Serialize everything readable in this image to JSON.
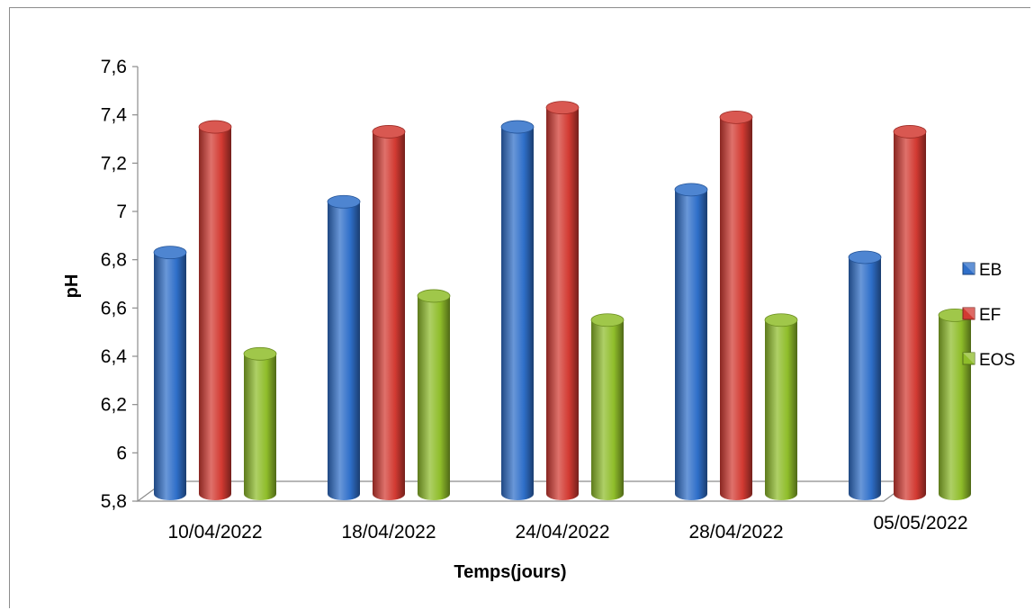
{
  "chart_data": {
    "type": "bar",
    "categories": [
      "10/04/2022",
      "18/04/2022",
      "24/04/2022",
      "28/04/2022",
      "05/05/2022"
    ],
    "series": [
      {
        "name": "EB",
        "color": "#2f6fc9",
        "values": [
          6.83,
          7.04,
          7.35,
          7.09,
          6.81
        ]
      },
      {
        "name": "EF",
        "color": "#d23a32",
        "values": [
          7.35,
          7.33,
          7.43,
          7.39,
          7.33
        ]
      },
      {
        "name": "EOS",
        "color": "#8fbd2a",
        "values": [
          6.41,
          6.65,
          6.55,
          6.55,
          6.57
        ]
      }
    ],
    "xlabel": "Temps(jours)",
    "ylabel": "pH",
    "ylim": [
      5.8,
      7.6
    ],
    "yticks": [
      "5,8",
      "6",
      "6,2",
      "6,4",
      "6,6",
      "6,8",
      "7",
      "7,2",
      "7,4",
      "7,6"
    ],
    "grid": false,
    "legend_position": "right"
  }
}
